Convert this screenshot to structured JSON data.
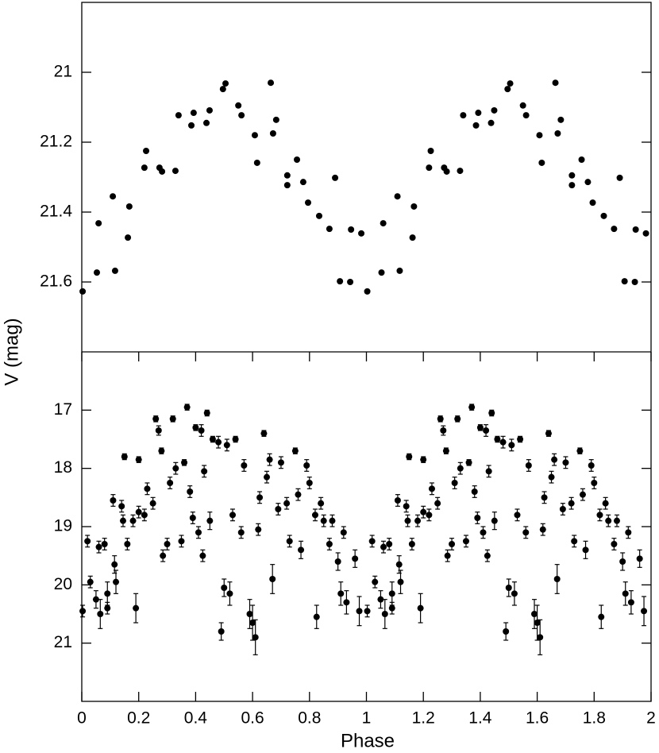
{
  "chart_data": [
    {
      "type": "scatter",
      "ylabel": "V (mag)",
      "xlim": [
        0,
        2
      ],
      "ylim": [
        20.8,
        21.8
      ],
      "y_inverted": true,
      "yticks": [
        21,
        21.2,
        21.4,
        21.6
      ],
      "color": "#000000",
      "x": [
        0.003,
        0.053,
        0.059,
        0.109,
        0.117,
        0.162,
        0.167,
        0.22,
        0.226,
        0.273,
        0.282,
        0.329,
        0.34,
        0.385,
        0.393,
        0.438,
        0.449,
        0.496,
        0.505,
        0.55,
        0.561,
        0.608,
        0.616,
        0.664,
        0.672,
        0.683,
        0.722,
        0.722,
        0.756,
        0.778,
        0.795,
        0.834,
        0.87,
        0.89,
        0.907,
        0.943,
        0.946,
        0.982,
        1.003,
        1.053,
        1.059,
        1.109,
        1.117,
        1.162,
        1.167,
        1.22,
        1.226,
        1.273,
        1.282,
        1.329,
        1.34,
        1.385,
        1.393,
        1.438,
        1.449,
        1.496,
        1.505,
        1.55,
        1.561,
        1.608,
        1.616,
        1.664,
        1.672,
        1.683,
        1.722,
        1.722,
        1.756,
        1.778,
        1.795,
        1.834,
        1.87,
        1.89,
        1.907,
        1.943,
        1.946,
        1.982
      ],
      "values": [
        21.627,
        21.573,
        21.432,
        21.355,
        21.568,
        21.473,
        21.384,
        21.273,
        21.225,
        21.273,
        21.284,
        21.282,
        21.123,
        21.152,
        21.116,
        21.145,
        21.109,
        21.048,
        21.032,
        21.095,
        21.123,
        21.18,
        21.259,
        21.03,
        21.175,
        21.136,
        21.295,
        21.323,
        21.25,
        21.314,
        21.373,
        21.411,
        21.448,
        21.302,
        21.598,
        21.6,
        21.45,
        21.461,
        21.627,
        21.573,
        21.432,
        21.355,
        21.568,
        21.473,
        21.384,
        21.273,
        21.225,
        21.273,
        21.284,
        21.282,
        21.123,
        21.152,
        21.116,
        21.145,
        21.109,
        21.048,
        21.032,
        21.095,
        21.123,
        21.18,
        21.259,
        21.03,
        21.175,
        21.136,
        21.295,
        21.323,
        21.25,
        21.314,
        21.373,
        21.411,
        21.448,
        21.302,
        21.598,
        21.6,
        21.45,
        21.461
      ]
    },
    {
      "type": "scatter",
      "xlabel": "Phase",
      "xlim": [
        0,
        2
      ],
      "ylim": [
        16,
        22
      ],
      "y_inverted": true,
      "xticks": [
        0,
        0.2,
        0.4,
        0.6,
        0.8,
        1,
        1.2,
        1.4,
        1.6,
        1.8,
        2
      ],
      "yticks": [
        17,
        18,
        19,
        20,
        21
      ],
      "color": "#000000",
      "x": [
        0.003,
        0.02,
        0.03,
        0.05,
        0.06,
        0.065,
        0.08,
        0.09,
        0.09,
        0.11,
        0.115,
        0.12,
        0.14,
        0.145,
        0.15,
        0.16,
        0.18,
        0.19,
        0.2,
        0.2,
        0.22,
        0.23,
        0.25,
        0.26,
        0.27,
        0.28,
        0.285,
        0.3,
        0.31,
        0.32,
        0.33,
        0.35,
        0.36,
        0.37,
        0.38,
        0.39,
        0.4,
        0.41,
        0.42,
        0.425,
        0.43,
        0.44,
        0.45,
        0.46,
        0.48,
        0.49,
        0.5,
        0.51,
        0.52,
        0.53,
        0.54,
        0.56,
        0.57,
        0.59,
        0.6,
        0.61,
        0.62,
        0.625,
        0.64,
        0.65,
        0.66,
        0.67,
        0.69,
        0.7,
        0.72,
        0.73,
        0.75,
        0.76,
        0.77,
        0.79,
        0.8,
        0.82,
        0.825,
        0.84,
        0.85,
        0.87,
        0.88,
        0.9,
        0.91,
        0.92,
        0.93,
        0.96,
        0.975,
        1.003,
        1.02,
        1.03,
        1.05,
        1.06,
        1.065,
        1.08,
        1.09,
        1.09,
        1.11,
        1.115,
        1.12,
        1.14,
        1.145,
        1.15,
        1.16,
        1.18,
        1.19,
        1.2,
        1.2,
        1.22,
        1.23,
        1.25,
        1.26,
        1.27,
        1.28,
        1.285,
        1.3,
        1.31,
        1.32,
        1.33,
        1.35,
        1.36,
        1.37,
        1.38,
        1.39,
        1.4,
        1.41,
        1.42,
        1.425,
        1.43,
        1.44,
        1.45,
        1.46,
        1.48,
        1.49,
        1.5,
        1.51,
        1.52,
        1.53,
        1.54,
        1.56,
        1.57,
        1.59,
        1.6,
        1.61,
        1.62,
        1.625,
        1.64,
        1.65,
        1.66,
        1.67,
        1.69,
        1.7,
        1.72,
        1.73,
        1.75,
        1.76,
        1.77,
        1.79,
        1.8,
        1.82,
        1.825,
        1.84,
        1.85,
        1.87,
        1.88,
        1.9,
        1.91,
        1.92,
        1.93,
        1.96,
        1.975
      ],
      "values": [
        20.45,
        19.25,
        19.95,
        20.25,
        19.35,
        20.5,
        19.3,
        20.15,
        20.4,
        18.55,
        19.65,
        19.95,
        18.65,
        18.9,
        17.8,
        19.3,
        18.9,
        20.4,
        18.75,
        17.85,
        18.8,
        18.35,
        18.6,
        17.15,
        17.35,
        17.7,
        19.5,
        19.3,
        18.25,
        17.15,
        18.0,
        19.25,
        17.9,
        16.95,
        18.4,
        18.85,
        17.3,
        19.1,
        17.35,
        19.5,
        18.05,
        17.05,
        18.9,
        17.5,
        17.55,
        20.8,
        20.05,
        17.6,
        20.15,
        18.8,
        17.5,
        19.1,
        17.95,
        20.5,
        20.65,
        20.9,
        19.05,
        18.5,
        17.4,
        18.15,
        17.85,
        19.9,
        18.7,
        17.9,
        18.6,
        19.25,
        17.7,
        18.45,
        19.4,
        17.95,
        18.25,
        18.8,
        20.55,
        18.6,
        18.9,
        19.3,
        18.9,
        19.6,
        20.15,
        19.1,
        20.3,
        19.55,
        20.45,
        20.45,
        19.25,
        19.95,
        20.25,
        19.35,
        20.5,
        19.3,
        20.15,
        20.4,
        18.55,
        19.65,
        19.95,
        18.65,
        18.9,
        17.8,
        19.3,
        18.9,
        20.4,
        18.75,
        17.85,
        18.8,
        18.35,
        18.6,
        17.15,
        17.35,
        17.7,
        19.5,
        19.3,
        18.25,
        17.15,
        18.0,
        19.25,
        17.9,
        16.95,
        18.4,
        18.85,
        17.3,
        19.1,
        17.35,
        19.5,
        18.05,
        17.05,
        18.9,
        17.5,
        17.55,
        20.8,
        20.05,
        17.6,
        20.15,
        18.8,
        17.5,
        19.1,
        17.95,
        20.5,
        20.65,
        20.9,
        19.05,
        18.5,
        17.4,
        18.15,
        17.85,
        19.9,
        18.7,
        17.9,
        18.6,
        19.25,
        17.7,
        18.45,
        19.4,
        17.95,
        18.25,
        18.8,
        20.55,
        18.6,
        18.9,
        19.3,
        18.9,
        19.6,
        20.15,
        19.1,
        20.3,
        19.55,
        20.45
      ],
      "errors": [
        0.1,
        0.1,
        0.1,
        0.15,
        0.1,
        0.25,
        0.1,
        0.2,
        0.1,
        0.1,
        0.15,
        0.2,
        0.1,
        0.1,
        0.05,
        0.1,
        0.1,
        0.25,
        0.1,
        0.05,
        0.1,
        0.1,
        0.1,
        0.05,
        0.08,
        0.05,
        0.1,
        0.1,
        0.1,
        0.05,
        0.1,
        0.1,
        0.05,
        0.05,
        0.1,
        0.1,
        0.05,
        0.1,
        0.1,
        0.1,
        0.1,
        0.05,
        0.15,
        0.05,
        0.1,
        0.15,
        0.15,
        0.1,
        0.2,
        0.1,
        0.05,
        0.1,
        0.1,
        0.25,
        0.3,
        0.3,
        0.1,
        0.1,
        0.05,
        0.1,
        0.1,
        0.25,
        0.1,
        0.1,
        0.1,
        0.1,
        0.05,
        0.1,
        0.15,
        0.1,
        0.1,
        0.1,
        0.2,
        0.1,
        0.1,
        0.1,
        0.1,
        0.15,
        0.2,
        0.1,
        0.2,
        0.15,
        0.25,
        0.1,
        0.1,
        0.1,
        0.15,
        0.1,
        0.25,
        0.1,
        0.2,
        0.1,
        0.1,
        0.15,
        0.2,
        0.1,
        0.1,
        0.05,
        0.1,
        0.1,
        0.25,
        0.1,
        0.05,
        0.1,
        0.1,
        0.1,
        0.05,
        0.08,
        0.05,
        0.1,
        0.1,
        0.1,
        0.05,
        0.1,
        0.1,
        0.05,
        0.05,
        0.1,
        0.1,
        0.05,
        0.1,
        0.1,
        0.1,
        0.1,
        0.05,
        0.15,
        0.05,
        0.1,
        0.15,
        0.15,
        0.1,
        0.2,
        0.1,
        0.05,
        0.1,
        0.1,
        0.25,
        0.3,
        0.3,
        0.1,
        0.1,
        0.05,
        0.1,
        0.1,
        0.25,
        0.1,
        0.1,
        0.1,
        0.1,
        0.05,
        0.1,
        0.15,
        0.1,
        0.1,
        0.1,
        0.2,
        0.1,
        0.1,
        0.1,
        0.1,
        0.15,
        0.2,
        0.1,
        0.2,
        0.15,
        0.25
      ]
    }
  ]
}
